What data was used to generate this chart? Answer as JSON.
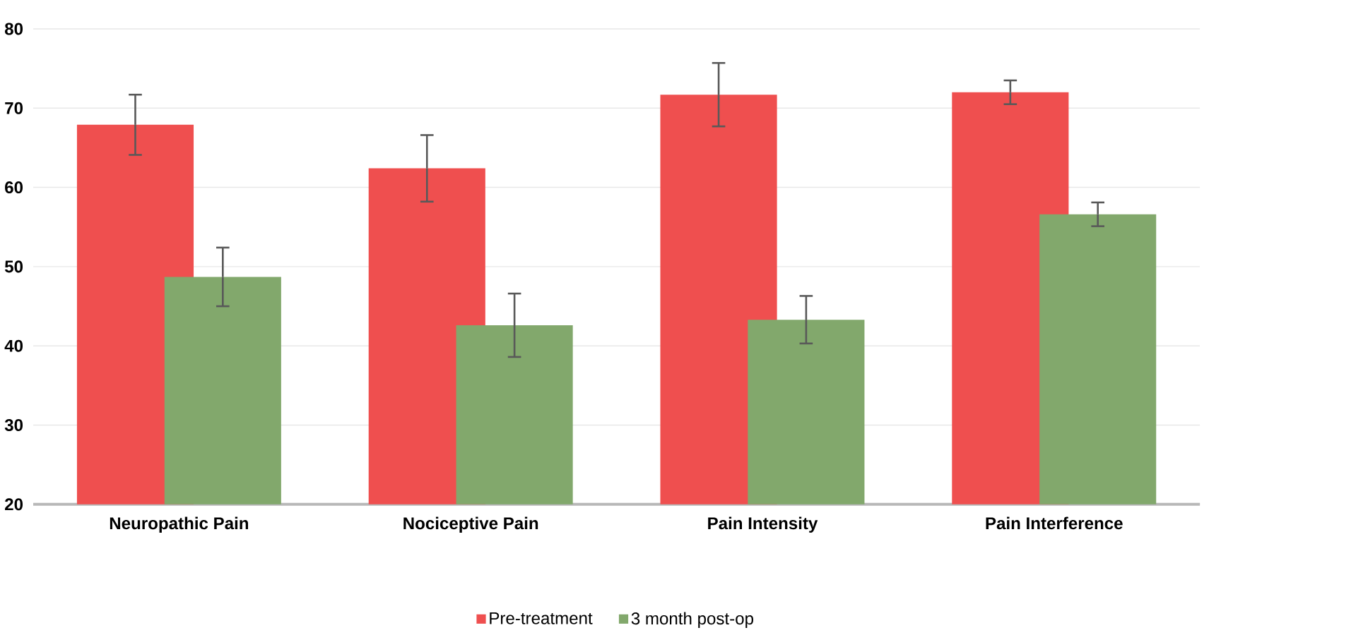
{
  "chart_data": {
    "type": "bar",
    "categories": [
      "Neuropathic Pain",
      "Nociceptive Pain",
      "Pain Intensity",
      "Pain Interference"
    ],
    "series": [
      {
        "name": "Pre-treatment",
        "color": "#ef4f4f",
        "values": [
          67.9,
          62.4,
          71.7,
          72.0
        ],
        "errors": [
          3.8,
          4.2,
          4.0,
          1.5
        ]
      },
      {
        "name": "3 month post-op",
        "color": "#82a86c",
        "values": [
          48.7,
          42.6,
          43.3,
          56.6
        ],
        "errors": [
          3.7,
          4.0,
          3.0,
          1.5
        ]
      }
    ],
    "ylim": [
      20,
      80
    ],
    "yticks": [
      20,
      30,
      40,
      50,
      60,
      70,
      80
    ],
    "grid": "y",
    "legend": "bottom"
  }
}
